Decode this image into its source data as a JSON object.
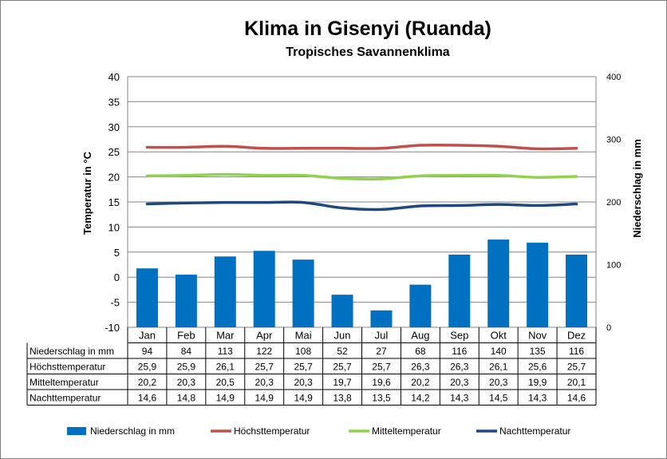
{
  "chart_data": {
    "type": "bar",
    "title": "Klima in Gisenyi (Ruanda)",
    "subtitle": "Tropisches Savannenklima",
    "ylabel": "Temperatur in °C",
    "y2label": "Niederschlag in mm",
    "ylim": [
      -10,
      40
    ],
    "y2lim": [
      0,
      400
    ],
    "yticks": [
      "40",
      "35",
      "30",
      "25",
      "20",
      "15",
      "10",
      "5",
      "0",
      "-5",
      "-10"
    ],
    "y2ticks": [
      "400",
      "300",
      "200",
      "100",
      "0"
    ],
    "categories": [
      "Jan",
      "Feb",
      "Mar",
      "Apr",
      "Mai",
      "Jun",
      "Jul",
      "Aug",
      "Sep",
      "Okt",
      "Nov",
      "Dez"
    ],
    "grid": true,
    "legend_position": "bottom",
    "series": [
      {
        "name": "Niederschlag in mm",
        "type": "bar",
        "axis": "right",
        "color": "#0070c0",
        "values": [
          94,
          84,
          113,
          122,
          108,
          52,
          27,
          68,
          116,
          140,
          135,
          116
        ],
        "labels": [
          "94",
          "84",
          "113",
          "122",
          "108",
          "52",
          "27",
          "68",
          "116",
          "140",
          "135",
          "116"
        ]
      },
      {
        "name": "Höchsttemperatur",
        "type": "line",
        "axis": "left",
        "color": "#c0504d",
        "values": [
          25.9,
          25.9,
          26.1,
          25.7,
          25.7,
          25.7,
          25.7,
          26.3,
          26.3,
          26.1,
          25.6,
          25.7
        ],
        "labels": [
          "25,9",
          "25,9",
          "26,1",
          "25,7",
          "25,7",
          "25,7",
          "25,7",
          "26,3",
          "26,3",
          "26,1",
          "25,6",
          "25,7"
        ]
      },
      {
        "name": "Mitteltemperatur",
        "type": "line",
        "axis": "left",
        "color": "#92d050",
        "values": [
          20.2,
          20.3,
          20.5,
          20.3,
          20.3,
          19.7,
          19.6,
          20.2,
          20.3,
          20.3,
          19.9,
          20.1
        ],
        "labels": [
          "20,2",
          "20,3",
          "20,5",
          "20,3",
          "20,3",
          "19,7",
          "19,6",
          "20,2",
          "20,3",
          "20,3",
          "19,9",
          "20,1"
        ]
      },
      {
        "name": "Nachttemperatur",
        "type": "line",
        "axis": "left",
        "color": "#1f497d",
        "values": [
          14.6,
          14.8,
          14.9,
          14.9,
          14.9,
          13.8,
          13.5,
          14.2,
          14.3,
          14.5,
          14.3,
          14.6
        ],
        "labels": [
          "14,6",
          "14,8",
          "14,9",
          "14,9",
          "14,9",
          "13,8",
          "13,5",
          "14,2",
          "14,3",
          "14,5",
          "14,3",
          "14,6"
        ]
      }
    ]
  }
}
